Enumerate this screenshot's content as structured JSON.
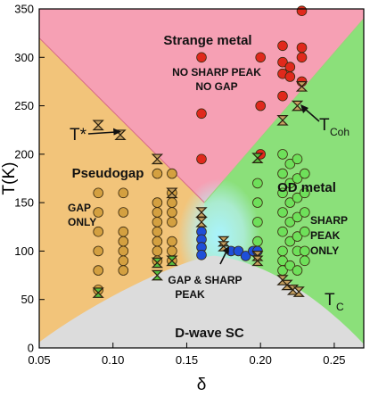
{
  "chart_data": {
    "type": "scatter",
    "xlabel": "δ",
    "ylabel": "T(K)",
    "xlim": [
      0.05,
      0.27
    ],
    "ylim": [
      0,
      350
    ],
    "xticks": [
      "0.05",
      "0.10",
      "0.15",
      "0.20",
      "0.25"
    ],
    "yticks": [
      "0",
      "50",
      "100",
      "150",
      "200",
      "250",
      "300",
      "350"
    ],
    "regions": {
      "strange_metal": {
        "lines": [
          "Strange metal"
        ],
        "color": "#f6a0b4"
      },
      "strange_metal_note": {
        "lines": [
          "NO SHARP PEAK",
          "NO GAP"
        ]
      },
      "pseudogap": {
        "lines": [
          "Pseudogap"
        ],
        "color": "#f2c47a"
      },
      "pseudogap_note": {
        "lines": [
          "GAP",
          "ONLY"
        ]
      },
      "od_metal": {
        "lines": [
          "OD metal"
        ],
        "color": "#8be07a"
      },
      "od_metal_note": {
        "lines": [
          "SHARP",
          "PEAK",
          "ONLY"
        ]
      },
      "gap_and_peak": {
        "lines": [
          "GAP & SHARP",
          "PEAK"
        ],
        "color": "#aaf0ff"
      },
      "sc_dome": {
        "lines": [
          "D-wave SC"
        ],
        "color": "#dcdcdc"
      }
    },
    "annotations": {
      "tstar": {
        "main": "T*"
      },
      "tcoh": {
        "main": "T",
        "sub": "Coh"
      },
      "tc": {
        "main": "T",
        "sub": "C"
      }
    },
    "series": [
      {
        "marker": "circle",
        "color": "#e0291c",
        "points": [
          [
            0.16,
            195
          ],
          [
            0.16,
            242
          ],
          [
            0.16,
            300
          ],
          [
            0.2,
            250
          ],
          [
            0.2,
            300
          ],
          [
            0.215,
            260
          ],
          [
            0.215,
            283
          ],
          [
            0.215,
            295
          ],
          [
            0.215,
            312
          ],
          [
            0.22,
            280
          ],
          [
            0.22,
            290
          ],
          [
            0.228,
            275
          ],
          [
            0.228,
            300
          ],
          [
            0.228,
            310
          ],
          [
            0.228,
            348
          ],
          [
            0.2,
            200
          ]
        ]
      },
      {
        "marker": "circle",
        "color": "#d4a040",
        "points": [
          [
            0.09,
            160
          ],
          [
            0.09,
            140
          ],
          [
            0.09,
            120
          ],
          [
            0.09,
            100
          ],
          [
            0.09,
            80
          ],
          [
            0.09,
            60
          ],
          [
            0.107,
            160
          ],
          [
            0.107,
            140
          ],
          [
            0.107,
            120
          ],
          [
            0.107,
            110
          ],
          [
            0.107,
            100
          ],
          [
            0.107,
            90
          ],
          [
            0.107,
            80
          ],
          [
            0.13,
            180
          ],
          [
            0.13,
            150
          ],
          [
            0.13,
            140
          ],
          [
            0.13,
            130
          ],
          [
            0.13,
            120
          ],
          [
            0.13,
            110
          ],
          [
            0.13,
            100
          ],
          [
            0.13,
            90
          ],
          [
            0.14,
            160
          ],
          [
            0.14,
            150
          ],
          [
            0.14,
            140
          ],
          [
            0.14,
            130
          ],
          [
            0.14,
            110
          ],
          [
            0.14,
            100
          ],
          [
            0.14,
            90
          ],
          [
            0.14,
            180
          ]
        ]
      },
      {
        "marker": "circle",
        "color": "#6ee05a",
        "points": [
          [
            0.215,
            200
          ],
          [
            0.215,
            180
          ],
          [
            0.215,
            160
          ],
          [
            0.215,
            140
          ],
          [
            0.215,
            120
          ],
          [
            0.215,
            100
          ],
          [
            0.215,
            90
          ],
          [
            0.215,
            80
          ],
          [
            0.22,
            190
          ],
          [
            0.22,
            170
          ],
          [
            0.22,
            150
          ],
          [
            0.22,
            130
          ],
          [
            0.22,
            110
          ],
          [
            0.22,
            85
          ],
          [
            0.225,
            195
          ],
          [
            0.225,
            175
          ],
          [
            0.225,
            155
          ],
          [
            0.225,
            135
          ],
          [
            0.225,
            115
          ],
          [
            0.225,
            100
          ],
          [
            0.225,
            80
          ],
          [
            0.23,
            180
          ],
          [
            0.23,
            160
          ],
          [
            0.23,
            140
          ],
          [
            0.23,
            120
          ],
          [
            0.23,
            100
          ],
          [
            0.23,
            90
          ],
          [
            0.198,
            170
          ],
          [
            0.198,
            150
          ],
          [
            0.198,
            130
          ],
          [
            0.198,
            110
          ]
        ]
      },
      {
        "marker": "circle",
        "color": "#1f4fd8",
        "points": [
          [
            0.16,
            120
          ],
          [
            0.16,
            112
          ],
          [
            0.16,
            104
          ],
          [
            0.16,
            96
          ],
          [
            0.18,
            100
          ],
          [
            0.185,
            100
          ],
          [
            0.19,
            95
          ],
          [
            0.195,
            100
          ],
          [
            0.198,
            100
          ]
        ]
      },
      {
        "marker": "hourglass",
        "color": "#c6a060",
        "points": [
          [
            0.09,
            230
          ],
          [
            0.105,
            220
          ],
          [
            0.13,
            195
          ],
          [
            0.14,
            160
          ],
          [
            0.16,
            140
          ],
          [
            0.16,
            130
          ],
          [
            0.175,
            110
          ],
          [
            0.175,
            105
          ],
          [
            0.198,
            95
          ],
          [
            0.198,
            90
          ],
          [
            0.215,
            235
          ],
          [
            0.225,
            250
          ],
          [
            0.228,
            270
          ],
          [
            0.215,
            70
          ],
          [
            0.218,
            65
          ],
          [
            0.222,
            60
          ],
          [
            0.226,
            58
          ]
        ]
      },
      {
        "marker": "hourglass",
        "color": "#58c040",
        "points": [
          [
            0.09,
            57
          ],
          [
            0.13,
            75
          ],
          [
            0.13,
            88
          ],
          [
            0.14,
            90
          ],
          [
            0.198,
            196
          ]
        ]
      }
    ]
  }
}
